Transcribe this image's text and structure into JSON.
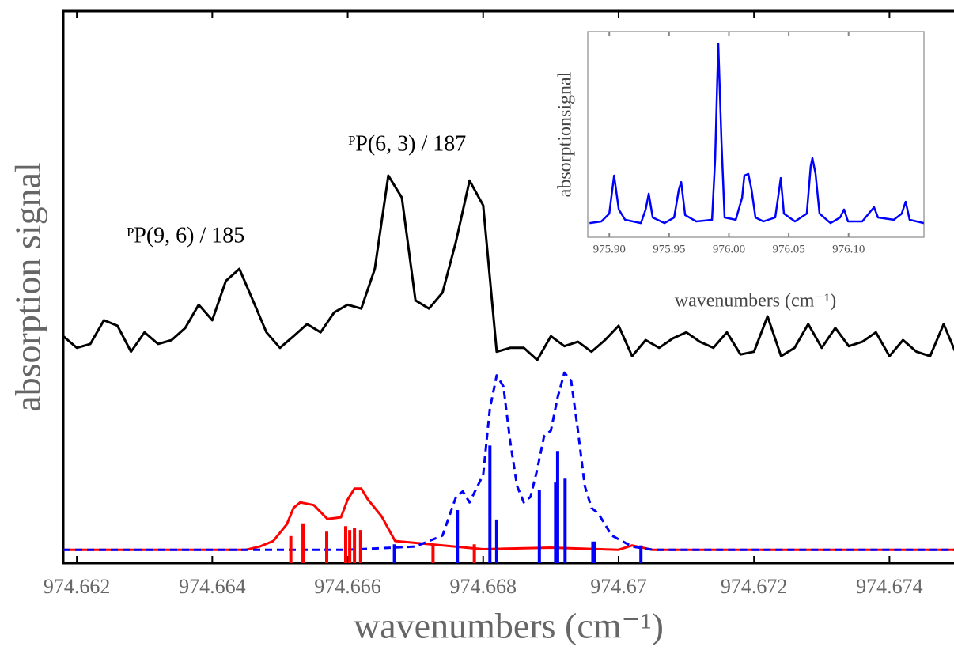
{
  "chart_data": [
    {
      "type": "line",
      "xlabel": "wavenumbers (cm⁻¹)",
      "ylabel": "absorption signal",
      "annotations": [
        "ᴾP(9, 6) / 185",
        "ᴾP(6, 3) / 187"
      ],
      "xlim": [
        974.6618,
        974.675
      ],
      "ylim": [
        0,
        100
      ],
      "xticks": [
        974.662,
        974.664,
        974.666,
        974.668,
        974.67,
        974.672,
        974.674
      ],
      "series": [
        {
          "color": "#000000",
          "style": "solid",
          "x": [
            974.6618,
            974.662,
            974.6622,
            974.6624,
            974.6626,
            974.6628,
            974.663,
            974.6632,
            974.6634,
            974.6636,
            974.6638,
            974.664,
            974.6642,
            974.6644,
            974.6646,
            974.6648,
            974.665,
            974.6652,
            974.6654,
            974.6656,
            974.6658,
            974.666,
            974.6662,
            974.6664,
            974.6666,
            974.6668,
            974.667,
            974.6672,
            974.6674,
            974.6676,
            974.6678,
            974.668,
            974.6682,
            974.6684,
            974.6686,
            974.6688,
            974.669,
            974.6692,
            974.6694,
            974.6696,
            974.6698,
            974.67,
            974.6702,
            974.6704,
            974.6706,
            974.6708,
            974.671,
            974.6712,
            974.6714,
            974.6716,
            974.6718,
            974.672,
            974.6722,
            974.6724,
            974.6726,
            974.6728,
            974.673,
            974.6732,
            974.6734,
            974.6736,
            974.6738,
            974.674,
            974.6742,
            974.6744,
            974.6746,
            974.6748,
            974.675
          ],
          "values": [
            41.1,
            39.0,
            39.7,
            44.0,
            43.0,
            38.3,
            41.8,
            39.7,
            40.4,
            42.6,
            46.8,
            44.0,
            51.1,
            53.3,
            47.6,
            41.8,
            39.0,
            41.1,
            43.3,
            41.8,
            45.4,
            46.8,
            46.1,
            53.3,
            70.2,
            66.2,
            47.6,
            46.1,
            49.0,
            58.3,
            69.3,
            64.8,
            38.3,
            39.0,
            39.0,
            36.8,
            41.1,
            39.3,
            40.1,
            38.3,
            40.4,
            43.0,
            37.5,
            40.4,
            39.0,
            40.7,
            41.8,
            40.1,
            39.0,
            41.8,
            37.8,
            38.3,
            44.7,
            37.5,
            39.0,
            43.3,
            39.0,
            42.6,
            39.3,
            40.1,
            41.8,
            37.5,
            40.4,
            38.3,
            37.5,
            43.3,
            37.5
          ]
        },
        {
          "color": "#ff0000",
          "style": "solid",
          "x": [
            974.6618,
            974.6645,
            974.6647,
            974.6649,
            974.6651,
            974.6652,
            974.6653,
            974.6655,
            974.6657,
            974.6659,
            974.666,
            974.6661,
            974.6662,
            974.6663,
            974.6665,
            974.6667,
            974.668,
            974.669,
            974.67,
            974.6702,
            974.6705,
            974.675
          ],
          "values": [
            2.4,
            2.4,
            3.0,
            4.0,
            7.0,
            10.0,
            11.0,
            10.5,
            8.0,
            8.3,
            11.5,
            13.5,
            13.5,
            11.5,
            8.5,
            4.0,
            2.5,
            2.8,
            2.4,
            3.2,
            2.4,
            2.4
          ]
        },
        {
          "color": "#0000ff",
          "style": "dashed",
          "x": [
            974.6618,
            974.666,
            974.667,
            974.6674,
            974.6676,
            974.6677,
            974.6678,
            974.668,
            974.6681,
            974.6682,
            974.6683,
            974.6684,
            974.6685,
            974.6686,
            974.6687,
            974.6688,
            974.6689,
            974.669,
            974.6691,
            974.6692,
            974.6693,
            974.6694,
            974.6695,
            974.6696,
            974.6697,
            974.6699,
            974.6702,
            974.6705,
            974.675
          ],
          "values": [
            2.4,
            2.4,
            3.0,
            5,
            12,
            13,
            11,
            16,
            28,
            34,
            32,
            22,
            14,
            11,
            12,
            17,
            23,
            24,
            30,
            34.5,
            33,
            24,
            14,
            10,
            9,
            5,
            3,
            2.4,
            2.4
          ]
        },
        {
          "color": "#ff0000",
          "style": "stick",
          "x": [
            974.66516,
            974.66534,
            974.66569,
            974.66597,
            974.66603,
            974.6661,
            974.66619,
            974.66726,
            974.66787
          ],
          "values": [
            4.9,
            7.2,
            5.7,
            6.7,
            6.0,
            6.3,
            6.0,
            3.4,
            3.4
          ]
        },
        {
          "color": "#0000ff",
          "style": "stick",
          "x": [
            974.66669,
            974.66762,
            974.6681,
            974.6682,
            974.66883,
            974.66907,
            974.6691,
            974.66921,
            974.66962,
            974.66965,
            974.67033
          ],
          "values": [
            3.4,
            9.6,
            21.3,
            7.9,
            13.2,
            14.6,
            20.3,
            15.3,
            3.9,
            3.9,
            3.2
          ]
        }
      ]
    },
    {
      "type": "line",
      "xlabel": "wavenumbers (cm⁻¹)",
      "ylabel": "absorptionsignal",
      "xlim": [
        975.882,
        976.163
      ],
      "ylim": [
        0,
        100
      ],
      "xticks": [
        {
          "value": 975.9,
          "label": "975.90"
        },
        975.95,
        {
          "value": 976.0,
          "label": "976.00"
        },
        976.05,
        {
          "value": 976.1,
          "label": "976.10"
        }
      ],
      "series": [
        {
          "color": "#0000ff",
          "style": "solid",
          "x": [
            975.8835,
            975.8934,
            975.9,
            975.904,
            975.9079,
            975.9132,
            975.9264,
            975.9304,
            975.933,
            975.9363,
            975.9462,
            975.9542,
            975.9581,
            975.9601,
            975.9634,
            975.9727,
            975.9859,
            975.9885,
            975.9911,
            975.9938,
            975.9964,
            976.0057,
            976.011,
            976.0129,
            976.0162,
            976.0189,
            976.0222,
            976.0288,
            976.0387,
            976.042,
            976.0433,
            976.046,
            976.0552,
            976.0651,
            976.0684,
            976.0698,
            976.0724,
            976.0757,
            976.0849,
            976.0929,
            976.0962,
            976.0995,
            976.1114,
            976.118,
            976.1213,
            976.1246,
            976.1378,
            976.1444,
            976.1477,
            976.151,
            976.1629
          ],
          "values": [
            6.9,
            7.7,
            11.5,
            30,
            13.5,
            8.5,
            6.9,
            13.5,
            21.2,
            9.6,
            6.9,
            9.6,
            23.1,
            26.9,
            10.8,
            7.7,
            8.5,
            38.5,
            94.2,
            46.2,
            9.6,
            8.5,
            19.2,
            30,
            30.8,
            23.1,
            9.6,
            7.7,
            9.6,
            23.1,
            28.8,
            11.5,
            7.7,
            11.5,
            34.6,
            38.5,
            30.8,
            11.5,
            6.9,
            9.6,
            13.5,
            7.7,
            7.7,
            12.3,
            14.6,
            9.6,
            8.5,
            11.5,
            17.3,
            8.5,
            6.9
          ]
        }
      ]
    }
  ]
}
